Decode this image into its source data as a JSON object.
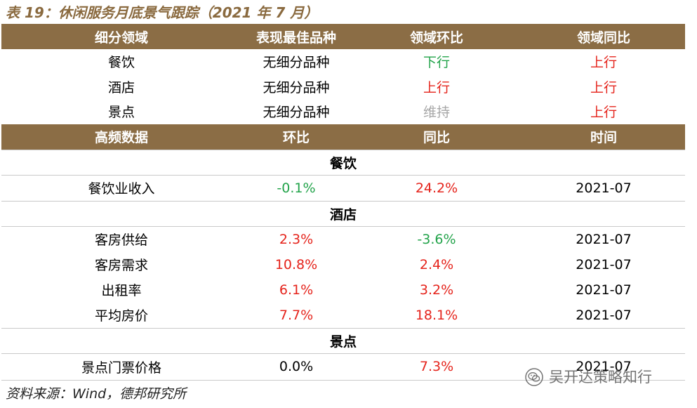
{
  "title": "表 19：休闲服务月底景气跟踪（2021 年 7 月）",
  "header1": [
    "细分领域",
    "表现最佳品种",
    "领域环比",
    "领域同比"
  ],
  "sector_rows": [
    {
      "name": "餐饮",
      "best": "无细分品种",
      "mom": "下行",
      "yoy": "上行"
    },
    {
      "name": "酒店",
      "best": "无细分品种",
      "mom": "上行",
      "yoy": "上行"
    },
    {
      "name": "景点",
      "best": "无细分品种",
      "mom": "维持",
      "yoy": "上行"
    }
  ],
  "header2": [
    "高频数据",
    "环比",
    "同比",
    "时间"
  ],
  "sections": [
    {
      "title": "餐饮",
      "rows": [
        {
          "name": "餐饮业收入",
          "mom": "-0.1%",
          "yoy": "24.2%",
          "time": "2021-07"
        }
      ]
    },
    {
      "title": "酒店",
      "rows": [
        {
          "name": "客房供给",
          "mom": "2.3%",
          "yoy": "-3.6%",
          "time": "2021-07"
        },
        {
          "name": "客房需求",
          "mom": "10.8%",
          "yoy": "2.4%",
          "time": "2021-07"
        },
        {
          "name": "出租率",
          "mom": "6.1%",
          "yoy": "3.2%",
          "time": "2021-07"
        },
        {
          "name": "平均房价",
          "mom": "7.7%",
          "yoy": "18.1%",
          "time": "2021-07"
        }
      ]
    },
    {
      "title": "景点",
      "rows": [
        {
          "name": "景点门票价格",
          "mom": "0.0%",
          "yoy": "7.3%",
          "time": "2021-07"
        }
      ]
    }
  ],
  "source": "资料来源：Wind，德邦研究所",
  "watermark": "吴开达策略知行",
  "colors": {
    "header_bg": "#8b6d45",
    "title": "#8a6a3f",
    "up": "#e5231b",
    "down": "#22a34a",
    "flat": "#a6a6a6"
  }
}
